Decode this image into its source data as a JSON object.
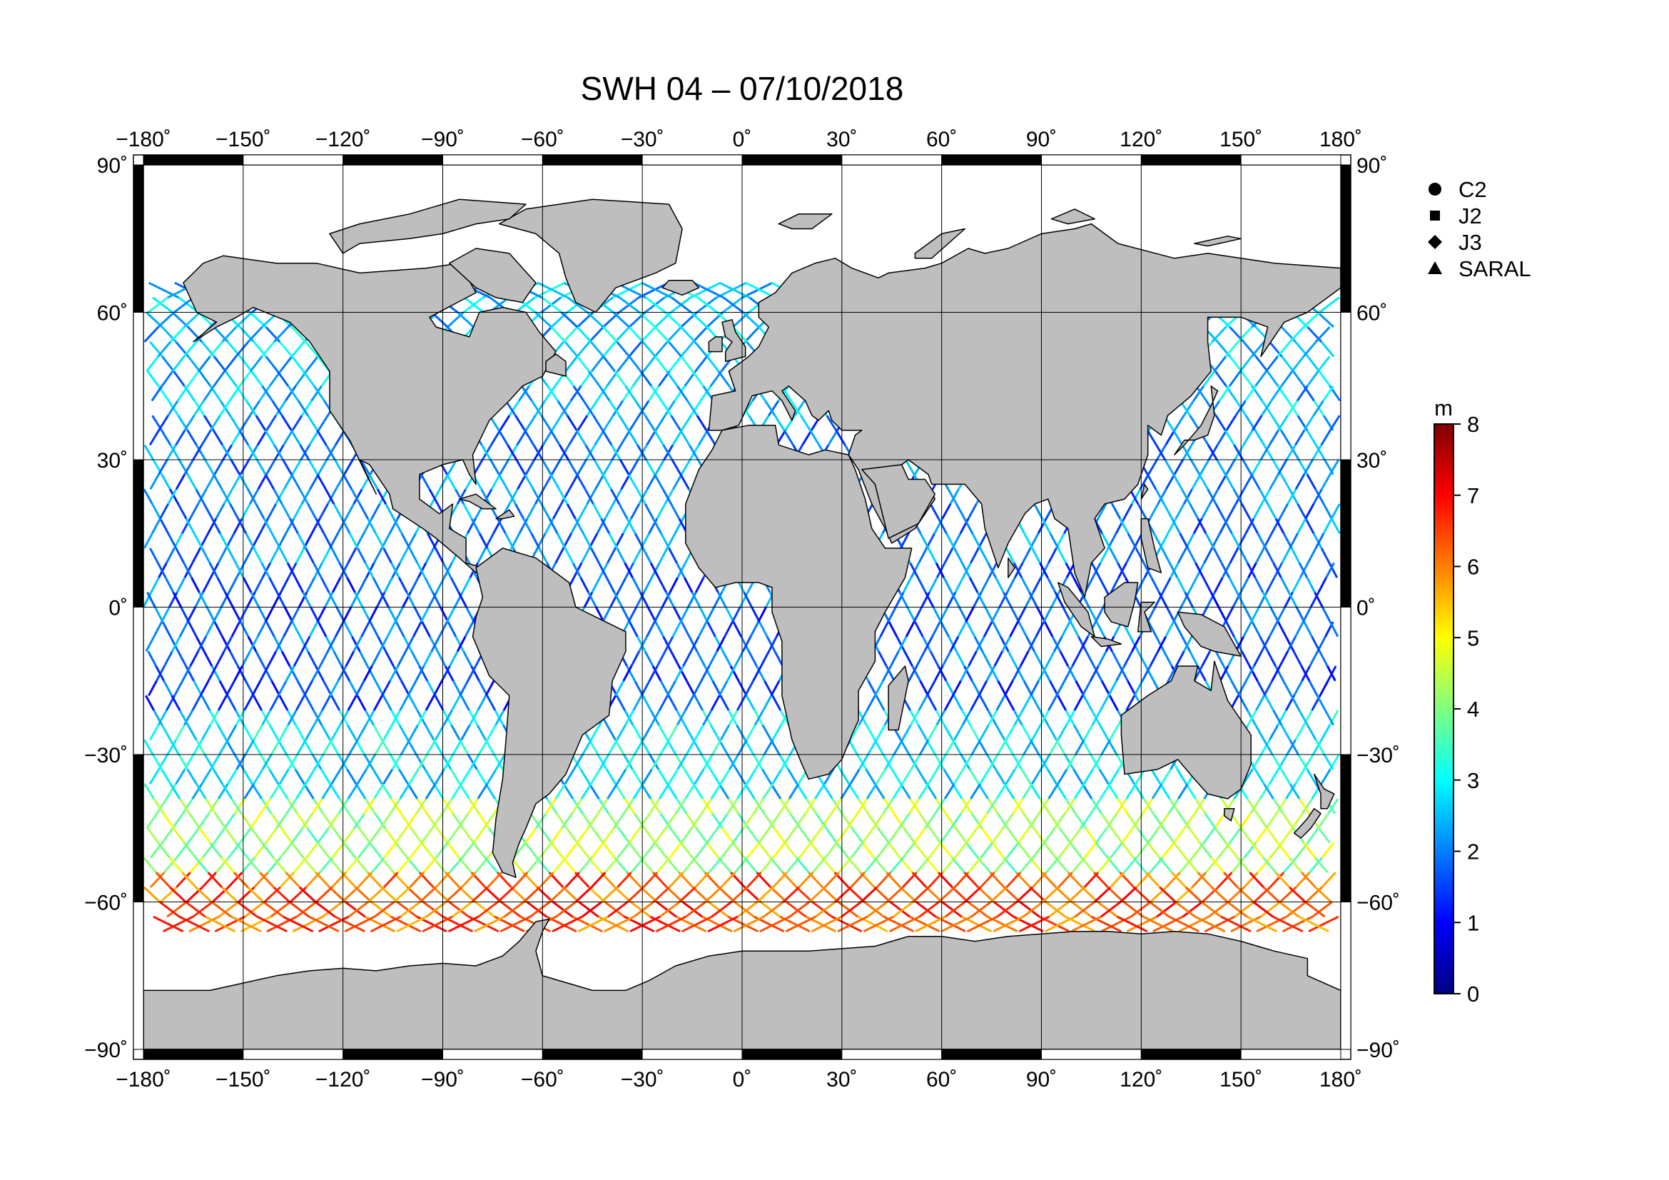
{
  "title": "SWH 04 – 07/10/2018",
  "map": {
    "projection": "equirectangular",
    "lon_range": [
      -180,
      180
    ],
    "lat_range": [
      -90,
      90
    ],
    "lon_ticks": [
      -180,
      -150,
      -120,
      -90,
      -60,
      -30,
      0,
      30,
      60,
      90,
      120,
      150,
      180
    ],
    "lat_ticks": [
      90,
      60,
      30,
      0,
      -30,
      -60,
      -90
    ],
    "lon_tick_labels": [
      "−180˚",
      "−150˚",
      "−120˚",
      "−90˚",
      "−60˚",
      "−30˚",
      "0˚",
      "30˚",
      "60˚",
      "90˚",
      "120˚",
      "150˚",
      "180˚"
    ],
    "lat_tick_labels": [
      "90˚",
      "60˚",
      "30˚",
      "0˚",
      "−30˚",
      "−60˚",
      "−90˚"
    ],
    "grid": true,
    "land_color": "#bebebe",
    "ocean_color": "#ffffff",
    "coast_color": "#000000"
  },
  "legend": {
    "items": [
      {
        "label": "C2",
        "symbol": "circle"
      },
      {
        "label": "J2",
        "symbol": "square"
      },
      {
        "label": "J3",
        "symbol": "diamond"
      },
      {
        "label": "SARAL",
        "symbol": "triangle"
      }
    ]
  },
  "colorbar": {
    "unit": "m",
    "min": 0,
    "max": 8,
    "ticks": [
      "0",
      "1",
      "2",
      "3",
      "4",
      "5",
      "6",
      "7",
      "8"
    ],
    "stops": [
      "#00007f",
      "#0000ff",
      "#007fff",
      "#00ffff",
      "#7fff7f",
      "#ffff00",
      "#ff7f00",
      "#ff0000",
      "#7f0000"
    ]
  },
  "tracks": {
    "description_values": "significant wave height along satellite altimeter ground tracks",
    "lat_bands": [
      {
        "lat_min": 40,
        "lat_max": 70,
        "swh_m": 2.5
      },
      {
        "lat_min": 10,
        "lat_max": 40,
        "swh_m": 2.0
      },
      {
        "lat_min": -20,
        "lat_max": 10,
        "swh_m": 1.8
      },
      {
        "lat_min": -40,
        "lat_max": -20,
        "swh_m": 2.8
      },
      {
        "lat_min": -55,
        "lat_max": -40,
        "swh_m": 4.3
      },
      {
        "lat_min": -66,
        "lat_max": -55,
        "swh_m": 6.3
      }
    ]
  }
}
